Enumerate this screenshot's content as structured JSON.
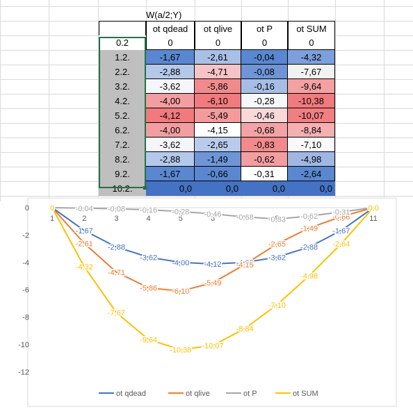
{
  "sheet": {
    "title": "W(a/2;Y)",
    "columns": [
      "ot qdead",
      "ot qlive",
      "ot P",
      "ot SUM"
    ],
    "rows": [
      {
        "label": "0.2",
        "values": [
          "0",
          "0",
          "0",
          "0"
        ]
      },
      {
        "label": "1.2.",
        "values": [
          "-1,67",
          "-2,61",
          "-0,04",
          "-4,32"
        ]
      },
      {
        "label": "2.2.",
        "values": [
          "-2,88",
          "-4,71",
          "-0,08",
          "-7,67"
        ]
      },
      {
        "label": "3.2.",
        "values": [
          "-3,62",
          "-5,86",
          "-0,16",
          "-9,64"
        ]
      },
      {
        "label": "4.2.",
        "values": [
          "-4,00",
          "-6,10",
          "-0,28",
          "-10,38"
        ]
      },
      {
        "label": "5.2.",
        "values": [
          "-4,12",
          "-5,49",
          "-0,46",
          "-10,07"
        ]
      },
      {
        "label": "6.2.",
        "values": [
          "-4,00",
          "-4,15",
          "-0,68",
          "-8,84"
        ]
      },
      {
        "label": "7.2.",
        "values": [
          "-3,62",
          "-2,65",
          "-0,83",
          "-7,10"
        ]
      },
      {
        "label": "8.2.",
        "values": [
          "-2,88",
          "-1,49",
          "-0,62",
          "-4,98"
        ]
      },
      {
        "label": "9.2.",
        "values": [
          "-1,67",
          "-0,66",
          "-0,31",
          "-2,64"
        ]
      },
      {
        "label": "10.2.",
        "values": [
          "0,0",
          "0,0",
          "0,0",
          "0,0"
        ]
      }
    ],
    "cell_colors": [
      [
        "#ffffff",
        "#ffffff",
        "#ffffff",
        "#ffffff"
      ],
      [
        "#5a87cf",
        "#a9c0e6",
        "#5a87cf",
        "#7d9fdb"
      ],
      [
        "#b4c8ea",
        "#f6c4c6",
        "#6f95d6",
        "#f2f2f2"
      ],
      [
        "#f5f6fb",
        "#f08a8d",
        "#a6bde4",
        "#f5a0a2"
      ],
      [
        "#f29ea0",
        "#f07a7d",
        "#f6f7fb",
        "#f07a7d"
      ],
      [
        "#f07a7d",
        "#f29a9c",
        "#f7d9da",
        "#f07f82"
      ],
      [
        "#f29ea0",
        "#ffffff",
        "#f3a3a5",
        "#f5b0b2"
      ],
      [
        "#f5f6fb",
        "#b9cbea",
        "#f08a8d",
        "#f9f9fb"
      ],
      [
        "#b4c8ea",
        "#6f95d6",
        "#f29ea0",
        "#a0b7e3"
      ],
      [
        "#5a87cf",
        "#5a87cf",
        "#ffffff",
        "#5a87cf"
      ],
      [
        "#4472c4",
        "#4472c4",
        "#4472c4",
        "#4472c4"
      ]
    ]
  },
  "chart_data": {
    "type": "line",
    "x": [
      1,
      2,
      3,
      4,
      5,
      6,
      7,
      8,
      9,
      10,
      11
    ],
    "x_ticks": [
      "1",
      "2",
      "3",
      "4",
      "5",
      "6",
      "7",
      "8",
      "9",
      "10",
      "11"
    ],
    "y_ticks": [
      "0",
      "-2",
      "-4",
      "-6",
      "-8",
      "-10",
      "-12"
    ],
    "ylim": [
      -12,
      0
    ],
    "series": [
      {
        "name": "ot qdead",
        "color": "#4472c4",
        "values": [
          0,
          -1.67,
          -2.88,
          -3.62,
          -4.0,
          -4.12,
          -4.0,
          -3.62,
          -2.88,
          -1.67,
          0
        ],
        "labels": [
          "0",
          "-1,67",
          "-2,88",
          "-3,62",
          "-4,00",
          "-4,12",
          "-4,00",
          "-3,62",
          "-2,88",
          "-1,67",
          "0,0"
        ]
      },
      {
        "name": "ot qlive",
        "color": "#ed7d31",
        "values": [
          0,
          -2.61,
          -4.71,
          -5.86,
          -6.1,
          -5.49,
          -4.15,
          -2.65,
          -1.49,
          -0.66,
          0
        ],
        "labels": [
          "0",
          "-2,61",
          "-4,71",
          "-5,86",
          "-6,10",
          "-5,49",
          "-4,15",
          "-2,65",
          "-1,49",
          "-0,66",
          "0,0"
        ]
      },
      {
        "name": "ot P",
        "color": "#a5a5a5",
        "values": [
          0,
          -0.04,
          -0.08,
          -0.16,
          -0.28,
          -0.46,
          -0.68,
          -0.83,
          -0.62,
          -0.31,
          0
        ],
        "labels": [
          "0",
          "-0,04",
          "-0,08",
          "-0,16",
          "-0,28",
          "-0,46",
          "-0,68",
          "-0,83",
          "-0,62",
          "-0,31",
          "0,0"
        ]
      },
      {
        "name": "ot SUM",
        "color": "#ffc000",
        "values": [
          0,
          -4.32,
          -7.67,
          -9.64,
          -10.38,
          -10.07,
          -8.84,
          -7.1,
          -4.98,
          -2.64,
          0
        ],
        "labels": [
          "0",
          "-4,32",
          "-7,67",
          "-9,64",
          "-10,38",
          "-10,07",
          "-8,84",
          "-7,10",
          "-4,98",
          "-2,64",
          "0,0"
        ]
      }
    ],
    "legend_position": "bottom",
    "grid": false
  }
}
